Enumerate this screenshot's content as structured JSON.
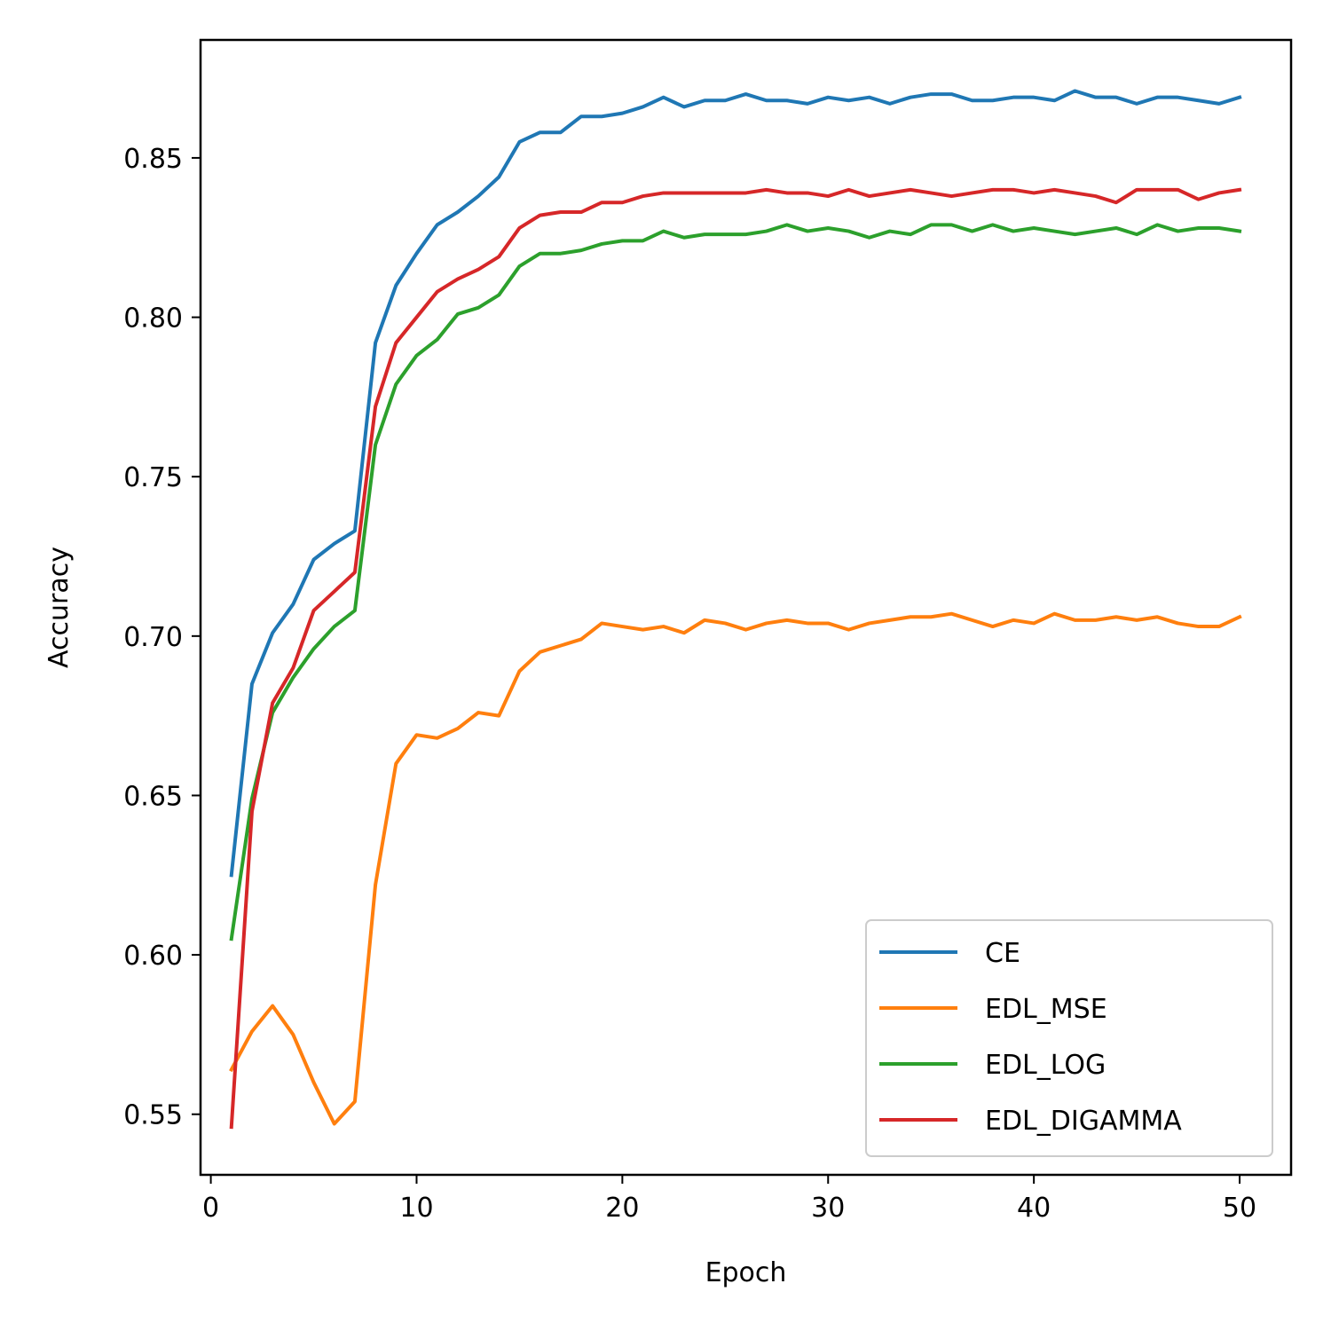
{
  "chart_data": {
    "type": "line",
    "xlabel": "Epoch",
    "ylabel": "Accuracy",
    "xlim": [
      -0.5,
      52.5
    ],
    "ylim": [
      0.531,
      0.887
    ],
    "xticks": [
      0,
      10,
      20,
      30,
      40,
      50
    ],
    "yticks": [
      0.55,
      0.6,
      0.65,
      0.7,
      0.75,
      0.8,
      0.85
    ],
    "xtick_labels": [
      "0",
      "10",
      "20",
      "30",
      "40",
      "50"
    ],
    "ytick_labels": [
      "0.55",
      "0.60",
      "0.65",
      "0.70",
      "0.75",
      "0.80",
      "0.85"
    ],
    "grid": false,
    "legend_position": "lower-right",
    "x": [
      1,
      2,
      3,
      4,
      5,
      6,
      7,
      8,
      9,
      10,
      11,
      12,
      13,
      14,
      15,
      16,
      17,
      18,
      19,
      20,
      21,
      22,
      23,
      24,
      25,
      26,
      27,
      28,
      29,
      30,
      31,
      32,
      33,
      34,
      35,
      36,
      37,
      38,
      39,
      40,
      41,
      42,
      43,
      44,
      45,
      46,
      47,
      48,
      49,
      50
    ],
    "series": [
      {
        "name": "CE",
        "color": "#1f77b4",
        "values": [
          0.625,
          0.685,
          0.701,
          0.71,
          0.724,
          0.729,
          0.733,
          0.792,
          0.81,
          0.82,
          0.829,
          0.833,
          0.838,
          0.844,
          0.855,
          0.858,
          0.858,
          0.863,
          0.863,
          0.864,
          0.866,
          0.869,
          0.866,
          0.868,
          0.868,
          0.87,
          0.868,
          0.868,
          0.867,
          0.869,
          0.868,
          0.869,
          0.867,
          0.869,
          0.87,
          0.87,
          0.868,
          0.868,
          0.869,
          0.869,
          0.868,
          0.871,
          0.869,
          0.869,
          0.867,
          0.869,
          0.869,
          0.868,
          0.867,
          0.869
        ]
      },
      {
        "name": "EDL_MSE",
        "color": "#ff7f0e",
        "values": [
          0.564,
          0.576,
          0.584,
          0.575,
          0.56,
          0.547,
          0.554,
          0.622,
          0.66,
          0.669,
          0.668,
          0.671,
          0.676,
          0.675,
          0.689,
          0.695,
          0.697,
          0.699,
          0.704,
          0.703,
          0.702,
          0.703,
          0.701,
          0.705,
          0.704,
          0.702,
          0.704,
          0.705,
          0.704,
          0.704,
          0.702,
          0.704,
          0.705,
          0.706,
          0.706,
          0.707,
          0.705,
          0.703,
          0.705,
          0.704,
          0.707,
          0.705,
          0.705,
          0.706,
          0.705,
          0.706,
          0.704,
          0.703,
          0.703,
          0.706
        ]
      },
      {
        "name": "EDL_LOG",
        "color": "#2ca02c",
        "values": [
          0.605,
          0.649,
          0.676,
          0.687,
          0.696,
          0.703,
          0.708,
          0.76,
          0.779,
          0.788,
          0.793,
          0.801,
          0.803,
          0.807,
          0.816,
          0.82,
          0.82,
          0.821,
          0.823,
          0.824,
          0.824,
          0.827,
          0.825,
          0.826,
          0.826,
          0.826,
          0.827,
          0.829,
          0.827,
          0.828,
          0.827,
          0.825,
          0.827,
          0.826,
          0.829,
          0.829,
          0.827,
          0.829,
          0.827,
          0.828,
          0.827,
          0.826,
          0.827,
          0.828,
          0.826,
          0.829,
          0.827,
          0.828,
          0.828,
          0.827
        ]
      },
      {
        "name": "EDL_DIGAMMA",
        "color": "#d62728",
        "values": [
          0.546,
          0.645,
          0.679,
          0.69,
          0.708,
          0.714,
          0.72,
          0.772,
          0.792,
          0.8,
          0.808,
          0.812,
          0.815,
          0.819,
          0.828,
          0.832,
          0.833,
          0.833,
          0.836,
          0.836,
          0.838,
          0.839,
          0.839,
          0.839,
          0.839,
          0.839,
          0.84,
          0.839,
          0.839,
          0.838,
          0.84,
          0.838,
          0.839,
          0.84,
          0.839,
          0.838,
          0.839,
          0.84,
          0.84,
          0.839,
          0.84,
          0.839,
          0.838,
          0.836,
          0.84,
          0.84,
          0.84,
          0.837,
          0.839,
          0.84
        ]
      }
    ]
  }
}
